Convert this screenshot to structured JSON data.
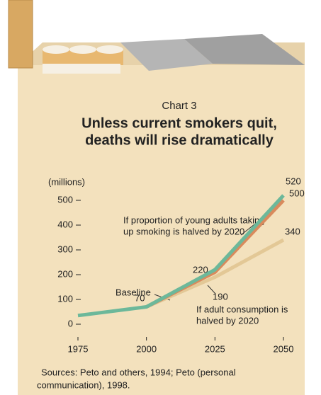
{
  "chart_data": {
    "type": "line",
    "title": "Chart 3",
    "subtitle": [
      "Unless current smokers quit,",
      "deaths will rise dramatically"
    ],
    "y_label": "(millions)",
    "xlim": [
      1975,
      2050
    ],
    "xticks": [
      1975,
      2000,
      2025,
      2050
    ],
    "ylim": [
      0,
      500
    ],
    "yticks": [
      0,
      100,
      200,
      300,
      400,
      500
    ],
    "series": [
      {
        "name": "If adult consumption is halved by 2020",
        "color": "#e3c896",
        "x": [
          2000,
          2025,
          2050
        ],
        "values": [
          70,
          190,
          340
        ]
      },
      {
        "name": "If proportion of young adults taking up smoking is halved by 2020",
        "color": "#d98a5c",
        "x": [
          2000,
          2025,
          2050
        ],
        "values": [
          70,
          210,
          500
        ]
      },
      {
        "name": "Baseline",
        "color": "#6cb89a",
        "x": [
          1975,
          2000,
          2025,
          2050
        ],
        "values": [
          35,
          70,
          220,
          520
        ]
      }
    ],
    "annotations": {
      "young": [
        "If proportion of young adults taking",
        "up smoking is halved by 2020"
      ],
      "adult": [
        "If adult consumption is",
        "halved by 2020"
      ]
    },
    "sources": [
      "Sources: Peto and others, 1994; Peto (personal",
      "communication), 1998."
    ]
  }
}
